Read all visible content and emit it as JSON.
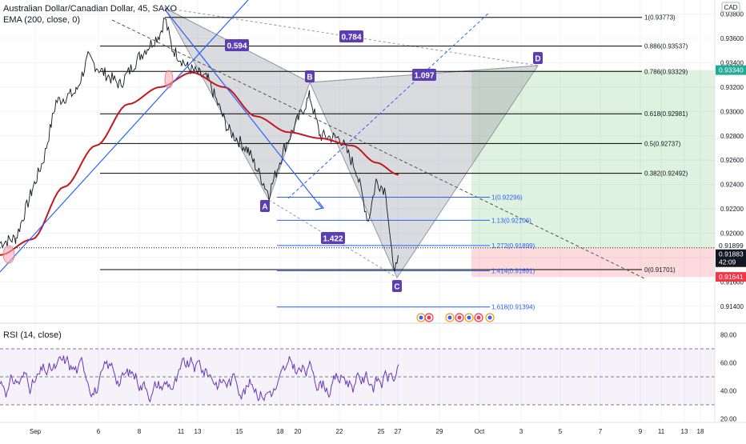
{
  "header": {
    "symbol_line": "Australian Dollar/Canadian Dollar, 45, SAXO",
    "ema_line": "EMA (200, close, 0)",
    "currency": "CAD"
  },
  "chart_data": {
    "type": "line",
    "price_axis": {
      "ticks": [
        "0.93800",
        "0.93600",
        "0.93400",
        "0.93200",
        "0.93000",
        "0.92800",
        "0.92600",
        "0.92400",
        "0.92200",
        "0.92000",
        "0.91800",
        "0.91600",
        "0.91400"
      ],
      "ylim": [
        0.913,
        0.9385
      ],
      "last_price": "0.91883",
      "countdown": "42:09",
      "bid": "0.91899",
      "target_label": "0.93340",
      "stop_label": "0.91641",
      "target": 0.9334,
      "stop": 0.91641
    },
    "time_axis": {
      "labels": [
        "Sep",
        "6",
        "8",
        "11",
        "13",
        "15",
        "18",
        "20",
        "22",
        "25",
        "27",
        "29",
        "Oct",
        "3",
        "5",
        "7",
        "9",
        "11",
        "13",
        "18"
      ]
    },
    "fib_levels": [
      {
        "label": "1(0.93773)",
        "value": 0.93773,
        "color": "#000000"
      },
      {
        "label": "0.886(0.93537)",
        "value": 0.93537,
        "color": "#000000"
      },
      {
        "label": "0.786(0.93329)",
        "value": 0.93329,
        "color": "#000000"
      },
      {
        "label": "0.618(0.92981)",
        "value": 0.92981,
        "color": "#000000"
      },
      {
        "label": "0.5(0.92737)",
        "value": 0.92737,
        "color": "#000000"
      },
      {
        "label": "0.382(0.92492)",
        "value": 0.92492,
        "color": "#000000"
      },
      {
        "label": "0(0.91701)",
        "value": 0.91701,
        "color": "#000000"
      }
    ],
    "ext_levels": [
      {
        "label": "1(0.92296)",
        "value": 0.92296,
        "color": "#2962ff"
      },
      {
        "label": "1.13(0.92106)",
        "value": 0.92106,
        "color": "#2962ff"
      },
      {
        "label": "1.272(0.91899)",
        "value": 0.91899,
        "color": "#2962ff"
      },
      {
        "label": "1.414(0.91691)",
        "value": 0.91691,
        "color": "#2962ff"
      },
      {
        "label": "1.618(0.91394)",
        "value": 0.91394,
        "color": "#2962ff"
      }
    ],
    "pattern": {
      "points": [
        "A",
        "B",
        "C",
        "D"
      ],
      "ratios": [
        "0.594",
        "0.784",
        "1.097",
        "1.422"
      ]
    },
    "rsi": {
      "title": "RSI (14, close)",
      "ticks": [
        "80.00",
        "60.00",
        "40.00",
        "20.00"
      ],
      "levels": [
        70,
        50,
        30
      ],
      "ylim": [
        18,
        86
      ]
    },
    "colors": {
      "ema": "#c2181f",
      "price": "#131722",
      "rsi": "#673ab7",
      "pattern": "#3f3f6e",
      "badge": "#5b3fb2",
      "target_zone": "#4caf50",
      "stop_zone": "#f23645"
    }
  }
}
